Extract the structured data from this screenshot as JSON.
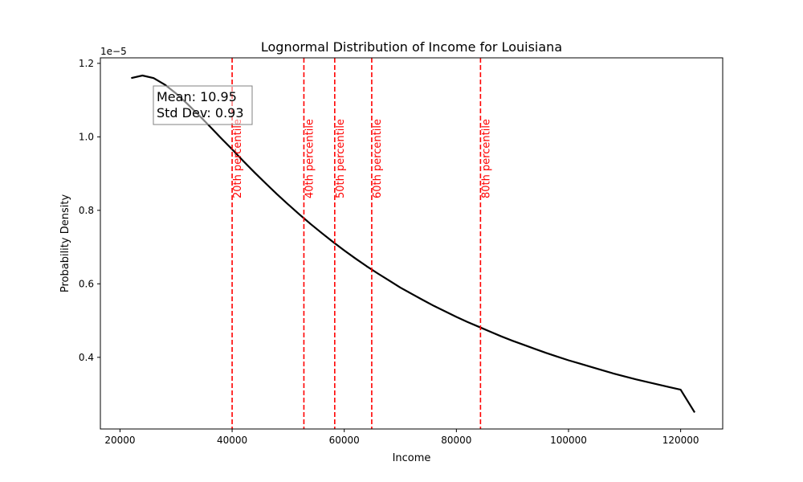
{
  "chart_data": {
    "type": "line",
    "title": "Lognormal Distribution of Income for Louisiana",
    "xlabel": "Income",
    "ylabel": "Probability Density",
    "y_offset_label": "1e−5",
    "xlim": [
      16500,
      127500
    ],
    "ylim": [
      0.205,
      1.215
    ],
    "y_scale_factor": 1e-05,
    "x_ticks": [
      20000,
      40000,
      60000,
      80000,
      100000,
      120000
    ],
    "x_tick_labels": [
      "20000",
      "40000",
      "60000",
      "80000",
      "100000",
      "120000"
    ],
    "y_ticks": [
      0.4,
      0.6,
      0.8,
      1.0,
      1.2
    ],
    "y_tick_labels": [
      "0.4",
      "0.6",
      "0.8",
      "1.0",
      "1.2"
    ],
    "grid": false,
    "series": [
      {
        "color": "#000000",
        "x": [
          22000,
          24000,
          26000,
          28000,
          30000,
          32000,
          34000,
          36000,
          38000,
          40000,
          42000,
          44000,
          46000,
          48000,
          50000,
          52000,
          54000,
          56000,
          58000,
          60000,
          62000,
          64000,
          66000,
          68000,
          70000,
          72000,
          74000,
          76000,
          78000,
          80000,
          82000,
          84000,
          86000,
          88000,
          90000,
          92000,
          94000,
          96000,
          98000,
          100000,
          102000,
          104000,
          106000,
          108000,
          110000,
          112000,
          114000,
          116000,
          118000,
          120000,
          122500
        ],
        "y": [
          1.16,
          1.167,
          1.16,
          1.142,
          1.118,
          1.09,
          1.06,
          1.029,
          0.997,
          0.966,
          0.934,
          0.903,
          0.873,
          0.844,
          0.816,
          0.789,
          0.763,
          0.738,
          0.714,
          0.691,
          0.669,
          0.648,
          0.628,
          0.609,
          0.59,
          0.573,
          0.556,
          0.54,
          0.525,
          0.51,
          0.496,
          0.483,
          0.47,
          0.457,
          0.445,
          0.434,
          0.423,
          0.412,
          0.402,
          0.392,
          0.383,
          0.374,
          0.365,
          0.356,
          0.348,
          0.34,
          0.333,
          0.326,
          0.319,
          0.312,
          0.25
        ]
      }
    ],
    "percentile_lines": [
      {
        "x": 40000,
        "label": "20th percentile"
      },
      {
        "x": 52800,
        "label": "40th percentile"
      },
      {
        "x": 58300,
        "label": "50th percentile"
      },
      {
        "x": 64900,
        "label": "60th percentile"
      },
      {
        "x": 84300,
        "label": "80th percentile"
      }
    ],
    "percentile_color": "#ff0000",
    "annotation": {
      "lines": [
        "Mean: 10.95",
        "Std Dev: 0.93"
      ],
      "placement": "top-left"
    }
  }
}
